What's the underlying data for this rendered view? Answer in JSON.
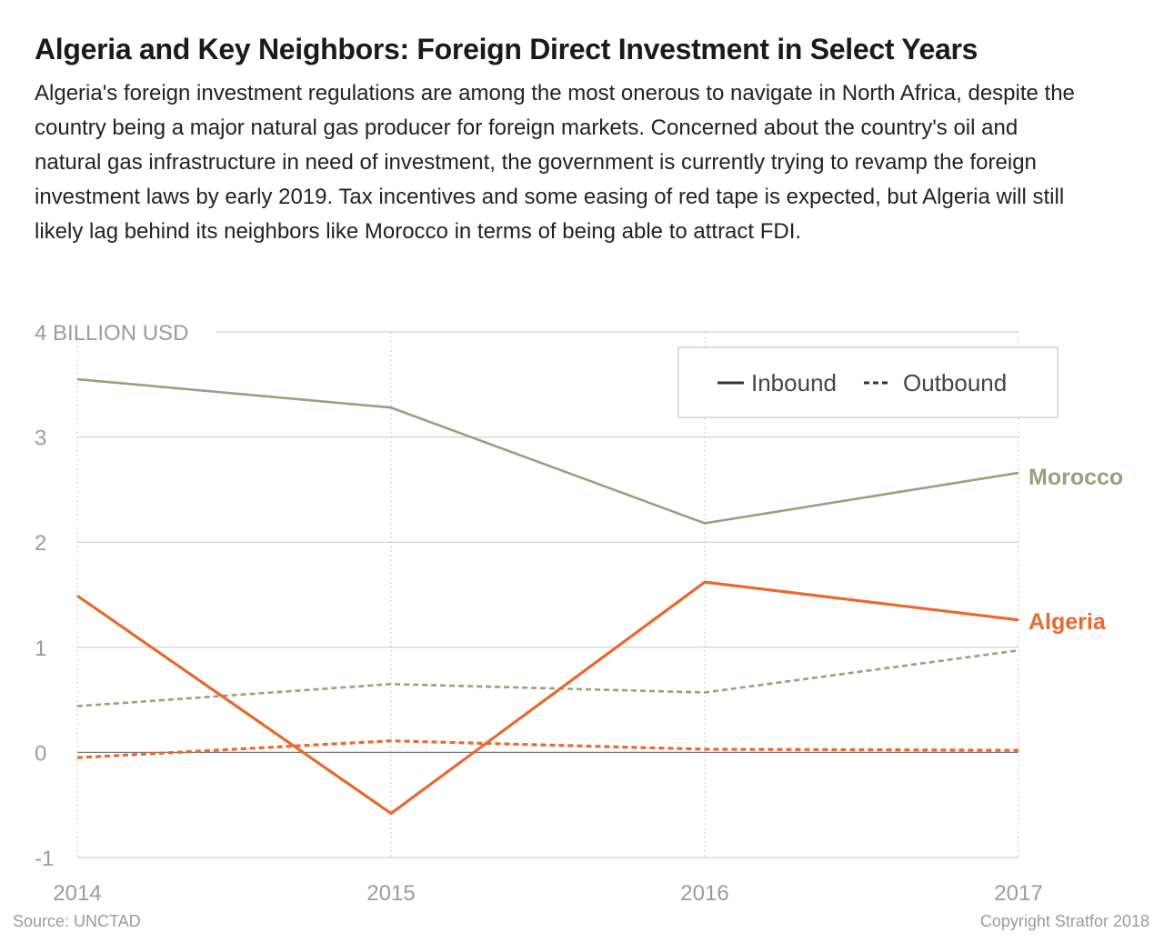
{
  "header": {
    "title": "Algeria and Key Neighbors: Foreign Direct Investment in Select Years",
    "subtitle": "Algeria's foreign investment regulations are among the most onerous to navigate in North Africa, despite the country being a major natural gas producer for foreign markets. Concerned about the country's oil and natural gas infrastructure in need of investment, the government is currently trying to revamp the foreign investment laws by early 2019. Tax incentives and some easing of red tape is expected, but Algeria will still likely lag behind its neighbors like Morocco in terms of being able to attract FDI."
  },
  "footer": {
    "source": "Source: UNCTAD",
    "copyright": "Copyright Stratfor 2018"
  },
  "chart_data": {
    "type": "line",
    "x": [
      2014,
      2015,
      2016,
      2017
    ],
    "ylim": [
      -1,
      4
    ],
    "yticks": [
      -1,
      0,
      1,
      2,
      3,
      4
    ],
    "ytick_labels": [
      "-1",
      "0",
      "1",
      "2",
      "3",
      "4 BILLION USD"
    ],
    "xtick_labels": [
      "2014",
      "2015",
      "2016",
      "2017"
    ],
    "grid": true,
    "legend": {
      "placement": "top-right",
      "entries": [
        {
          "label": "Inbound",
          "style": "solid"
        },
        {
          "label": "Outbound",
          "style": "dashed"
        }
      ]
    },
    "series": [
      {
        "name": "Morocco",
        "flow": "Inbound",
        "style": "solid",
        "color": "#9c9f7b",
        "values": [
          3.55,
          3.28,
          2.18,
          2.66
        ]
      },
      {
        "name": "Morocco",
        "flow": "Outbound",
        "style": "dashed",
        "color": "#9c9f7b",
        "values": [
          0.44,
          0.65,
          0.57,
          0.97
        ]
      },
      {
        "name": "Algeria",
        "flow": "Inbound",
        "style": "solid",
        "color": "#e8692d",
        "values": [
          1.49,
          -0.58,
          1.62,
          1.26
        ]
      },
      {
        "name": "Algeria",
        "flow": "Outbound",
        "style": "dashed",
        "color": "#e8692d",
        "values": [
          -0.05,
          0.11,
          0.03,
          0.02
        ]
      }
    ],
    "annotations": [
      {
        "text": "Morocco",
        "color": "#9c9f7b"
      },
      {
        "text": "Algeria",
        "color": "#e8692d"
      }
    ]
  }
}
